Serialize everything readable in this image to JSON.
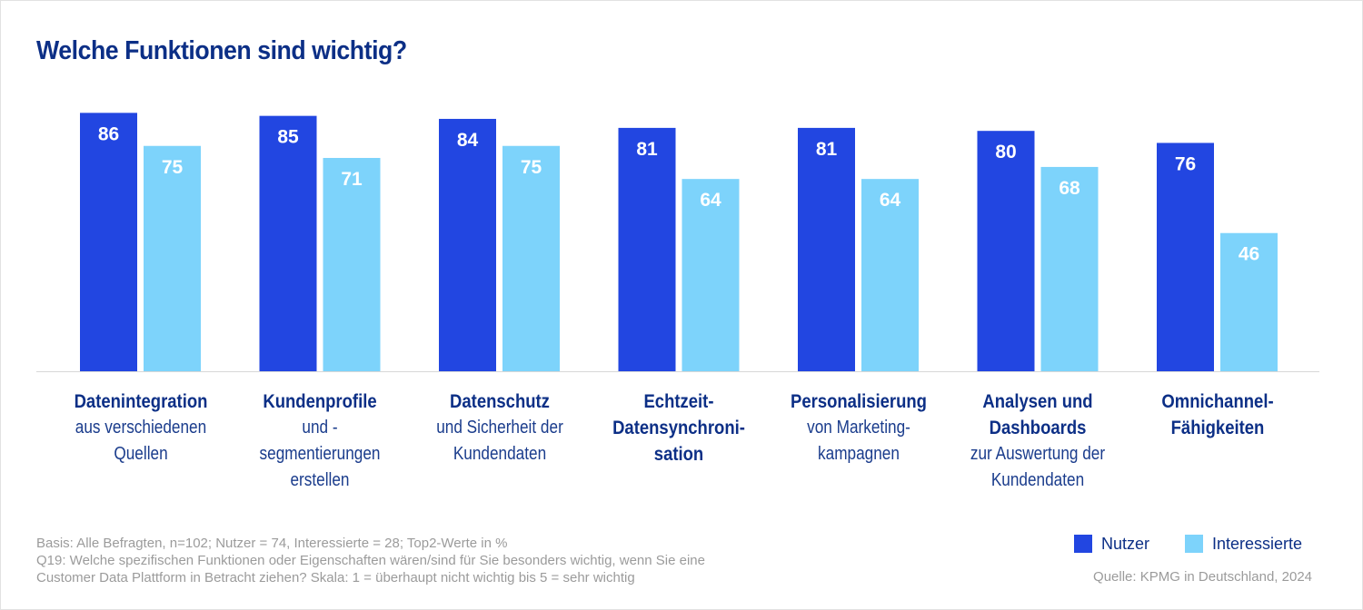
{
  "title": "Welche Funktionen sind wichtig?",
  "colors": {
    "nutzer": "#2246e1",
    "interessierte": "#7dd3fb",
    "title": "#0c2f86",
    "axis": "#d8d8d8"
  },
  "chart_data": {
    "type": "bar",
    "title": "Welche Funktionen sind wichtig?",
    "categories": [
      "Datenintegration aus verschiedenen Quellen",
      "Kundenprofile und -segmentierungen erstellen",
      "Datenschutz und Sicherheit der Kundendaten",
      "Echtzeit-Datensynchronisation",
      "Personalisierung von Marketing-kampagnen",
      "Analysen und Dashboards zur Auswertung der Kundendaten",
      "Omnichannel-Fähigkeiten"
    ],
    "series": [
      {
        "name": "Nutzer",
        "values": [
          86,
          85,
          84,
          81,
          81,
          80,
          76
        ]
      },
      {
        "name": "Interessierte",
        "values": [
          75,
          71,
          75,
          64,
          64,
          68,
          46
        ]
      }
    ],
    "ylim": [
      0,
      100
    ],
    "legend_position": "bottom-right",
    "grid": false
  },
  "category_labels": [
    {
      "main": "Datenintegration",
      "sub": "aus verschiedenen\nQuellen"
    },
    {
      "main": "Kundenprofile",
      "sub": "und -segmentierungen\nerstellen"
    },
    {
      "main": "Datenschutz",
      "sub": "und Sicherheit  der\nKundendaten"
    },
    {
      "main": "Echtzeit-\nDatensynchroni-\nsation",
      "sub": ""
    },
    {
      "main": "Personalisierung",
      "sub": "von Marketing-\nkampagnen"
    },
    {
      "main": "Analysen und\nDashboards",
      "sub": "zur Auswertung der\nKundendaten"
    },
    {
      "main": "Omnichannel-\nFähigkeiten",
      "sub": ""
    }
  ],
  "notes": {
    "line1": "Basis: Alle Befragten, n=102; Nutzer = 74, Interessierte = 28; Top2-Werte in %",
    "line2": "Q19: Welche spezifischen Funktionen oder Eigenschaften wären/sind für Sie besonders wichtig, wenn Sie eine",
    "line3": "Customer Data Plattform in Betracht ziehen? Skala: 1 = überhaupt nicht wichtig bis 5 = sehr wichtig"
  },
  "legend": {
    "nutzer": "Nutzer",
    "interessierte": "Interessierte"
  },
  "source": "Quelle: KPMG in Deutschland, 2024"
}
